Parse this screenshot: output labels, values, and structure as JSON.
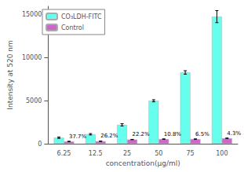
{
  "chart_data": {
    "type": "bar",
    "categories": [
      "6.25",
      "12.5",
      "25",
      "50",
      "75",
      "100"
    ],
    "series": [
      {
        "name": "CO₃LDH-FITC",
        "color": "#66FFEE",
        "values": [
          700,
          1100,
          2200,
          5000,
          8300,
          14800
        ],
        "errors": [
          80,
          80,
          130,
          120,
          200,
          700
        ]
      },
      {
        "name": "Control",
        "color": "#CC66CC",
        "values": [
          264,
          288,
          488,
          540,
          540,
          636
        ],
        "errors": [
          20,
          20,
          20,
          20,
          20,
          20
        ]
      }
    ],
    "annotations": [
      {
        "text": "37.7%",
        "category": "6.25",
        "series": "Control"
      },
      {
        "text": "26.2%",
        "category": "12.5",
        "series": "Control"
      },
      {
        "text": "22.2%",
        "category": "25",
        "series": "Control"
      },
      {
        "text": "10.8%",
        "category": "50",
        "series": "Control"
      },
      {
        "text": "6.5%",
        "category": "75",
        "series": "Control"
      },
      {
        "text": "4.3%",
        "category": "100",
        "series": "Control"
      }
    ],
    "ylim": [
      0,
      16000
    ],
    "yticks": [
      0,
      5000,
      10000,
      15000
    ],
    "ylabel": "Intensity at 520 nm",
    "xlabel": "concentration(μg/ml)",
    "legend": "upper left",
    "grid": false
  }
}
